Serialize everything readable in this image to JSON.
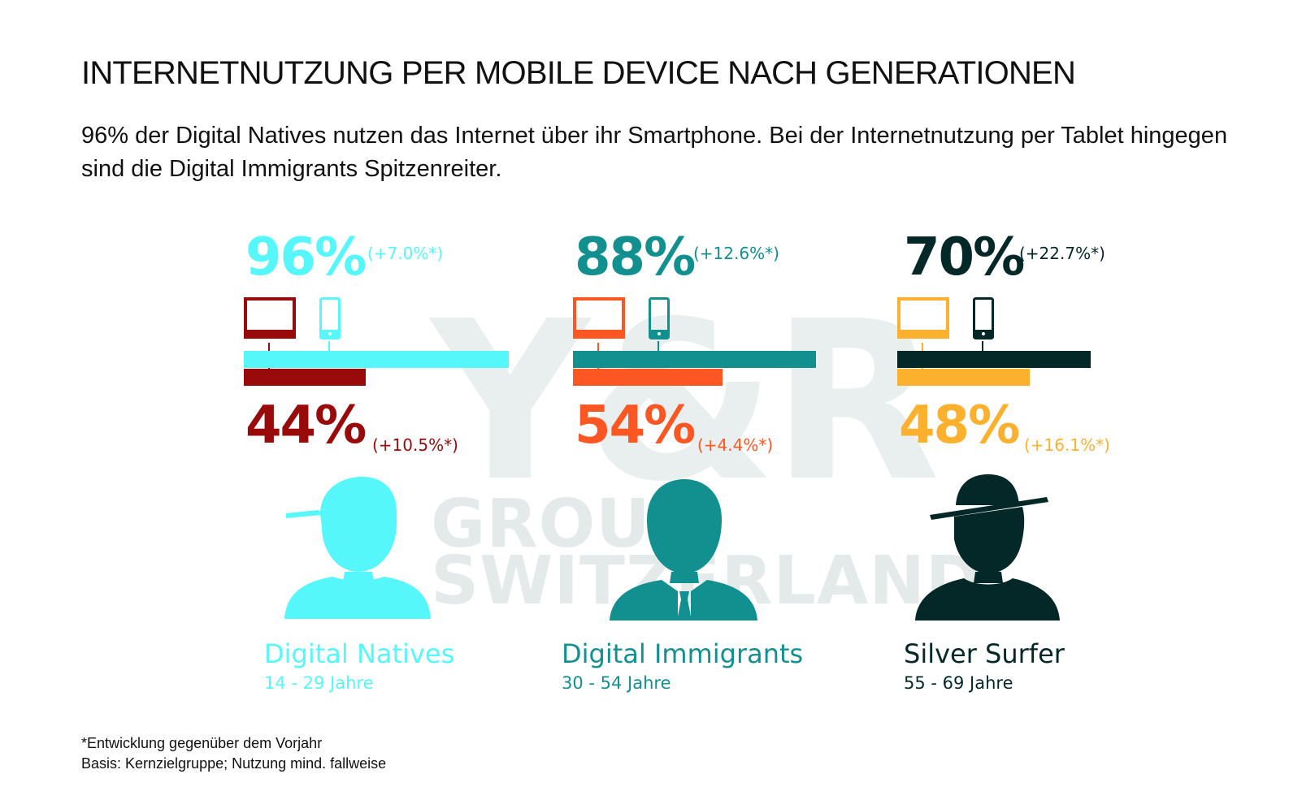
{
  "title": "INTERNETNUTZUNG PER MOBILE DEVICE NACH GENERATIONEN",
  "subtitle": "96% der Digital Natives nutzen das Internet über ihr Smartphone. Bei der Internetnutzung per Tablet hingegen sind die Digital Immigrants Spitzenreiter.",
  "watermark": {
    "brand": "Y&R",
    "line1": "GROUP",
    "line2": "SWITZERLAND"
  },
  "chart_data": {
    "type": "bar",
    "categories": [
      "Digital Natives",
      "Digital Immigrants",
      "Silver Surfer"
    ],
    "age_ranges": [
      "14 - 29 Jahre",
      "30 - 54 Jahre",
      "55 - 69 Jahre"
    ],
    "series": [
      {
        "device": "smartphone",
        "values": [
          96,
          88,
          70
        ],
        "labels": [
          "96%",
          "88%",
          "70%"
        ],
        "changes": [
          "(+7.0%*)",
          "(+12.6%*)",
          "(+22.7%*)"
        ]
      },
      {
        "device": "tablet",
        "values": [
          44,
          54,
          48
        ],
        "labels": [
          "44%",
          "54%",
          "48%"
        ],
        "changes": [
          "(+10.5%*)",
          "(+4.4%*)",
          "(+16.1%*)"
        ]
      }
    ],
    "ylim": [
      0,
      100
    ]
  },
  "colors": {
    "natives_phone": "#55f7fb",
    "natives_tablet": "#990a0a",
    "immigrants_phone": "#12908f",
    "immigrants_tablet": "#fc5723",
    "silver_phone": "#042828",
    "silver_tablet": "#fcb12e"
  },
  "icons": {
    "tablet": "tablet-icon",
    "phone": "smartphone-icon",
    "natives_person": "person-cap-icon",
    "immigrants_person": "person-suit-icon",
    "silver_person": "person-hat-icon"
  },
  "footnotes": {
    "line1": "*Entwicklung gegenüber dem Vorjahr",
    "line2": "Basis: Kernzielgruppe; Nutzung mind. fallweise"
  }
}
